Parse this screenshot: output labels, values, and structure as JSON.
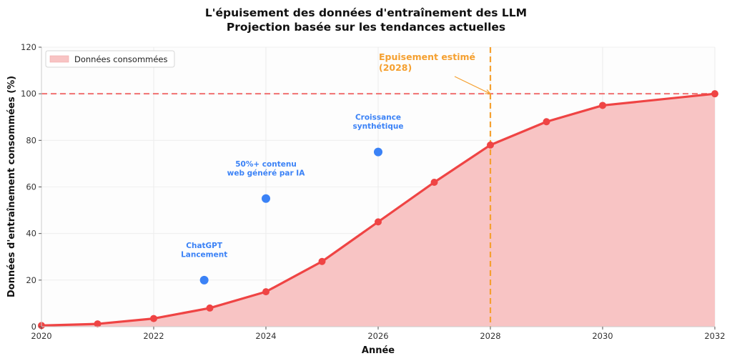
{
  "chart_data": {
    "type": "area",
    "title": "L'épuisement des données d'entraînement des LLM",
    "subtitle": "Projection basée sur les tendances actuelles",
    "xlabel": "Année",
    "ylabel": "Données d'entraînement consommées (%)",
    "xlim": [
      2020,
      2032
    ],
    "ylim": [
      0,
      120
    ],
    "xticks": [
      "2020",
      "2022",
      "2024",
      "2026",
      "2028",
      "2030",
      "2032"
    ],
    "yticks": [
      "0",
      "20",
      "40",
      "60",
      "80",
      "100",
      "120"
    ],
    "grid": true,
    "legend": {
      "position": "top-left",
      "entries": [
        "Données consommées"
      ]
    },
    "series": [
      {
        "name": "Données consommées",
        "x": [
          2020,
          2021,
          2022,
          2023,
          2024,
          2025,
          2026,
          2027,
          2028,
          2029,
          2030,
          2032
        ],
        "values": [
          0.5,
          1.2,
          3.5,
          8,
          15,
          28,
          45,
          62,
          78,
          88,
          95,
          100
        ],
        "color": "#ef4444",
        "fill": "#f8c4c4"
      }
    ],
    "events": [
      {
        "x": 2022.9,
        "y": 20,
        "label_lines": [
          "ChatGPT",
          "Lancement"
        ],
        "color": "#3b82f6"
      },
      {
        "x": 2024,
        "y": 55,
        "label_lines": [
          "50%+ contenu",
          "web généré par IA"
        ],
        "color": "#3b82f6"
      },
      {
        "x": 2026,
        "y": 75,
        "label_lines": [
          "Croissance",
          "synthétique"
        ],
        "color": "#3b82f6"
      }
    ],
    "reference_lines": {
      "horizontal": {
        "y": 100,
        "color": "#f07070",
        "style": "dashed"
      },
      "vertical": {
        "x": 2028,
        "color": "#f5a030",
        "style": "dashed"
      }
    },
    "annotation": {
      "label_lines": [
        "Epuisement estimé",
        "(2028)"
      ],
      "target": {
        "x": 2028,
        "y": 100
      },
      "color": "#f5a030"
    }
  }
}
